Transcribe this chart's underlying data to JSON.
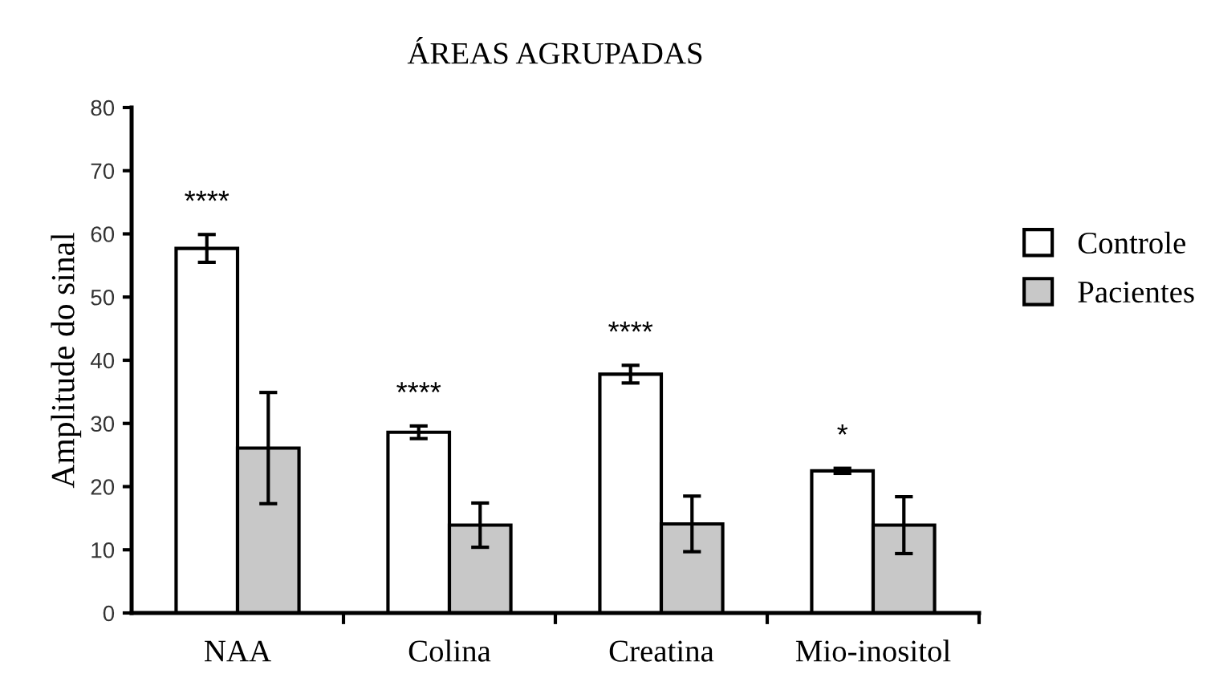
{
  "chart_data": {
    "type": "bar",
    "title": "ÁREAS AGRUPADAS",
    "ylabel": "Amplitude do sinal",
    "categories": [
      "NAA",
      "Colina",
      "Creatina",
      "Mio-inositol"
    ],
    "series": [
      {
        "name": "Controle",
        "color": "#ffffff",
        "values": [
          57.7,
          28.6,
          37.8,
          22.5
        ],
        "errors": [
          2.2,
          1,
          1.4,
          0.4
        ]
      },
      {
        "name": "Pacientes",
        "color": "#c8c8c8",
        "values": [
          26.1,
          13.9,
          14.1,
          13.9
        ],
        "errors": [
          8.8,
          3.5,
          4.4,
          4.5
        ]
      }
    ],
    "ylim": [
      0,
      80
    ],
    "yticks": [
      0,
      10,
      20,
      30,
      40,
      50,
      60,
      70,
      80
    ],
    "grid": false,
    "legend": "right",
    "annotations": [
      "****",
      "****",
      "****",
      "*"
    ]
  }
}
